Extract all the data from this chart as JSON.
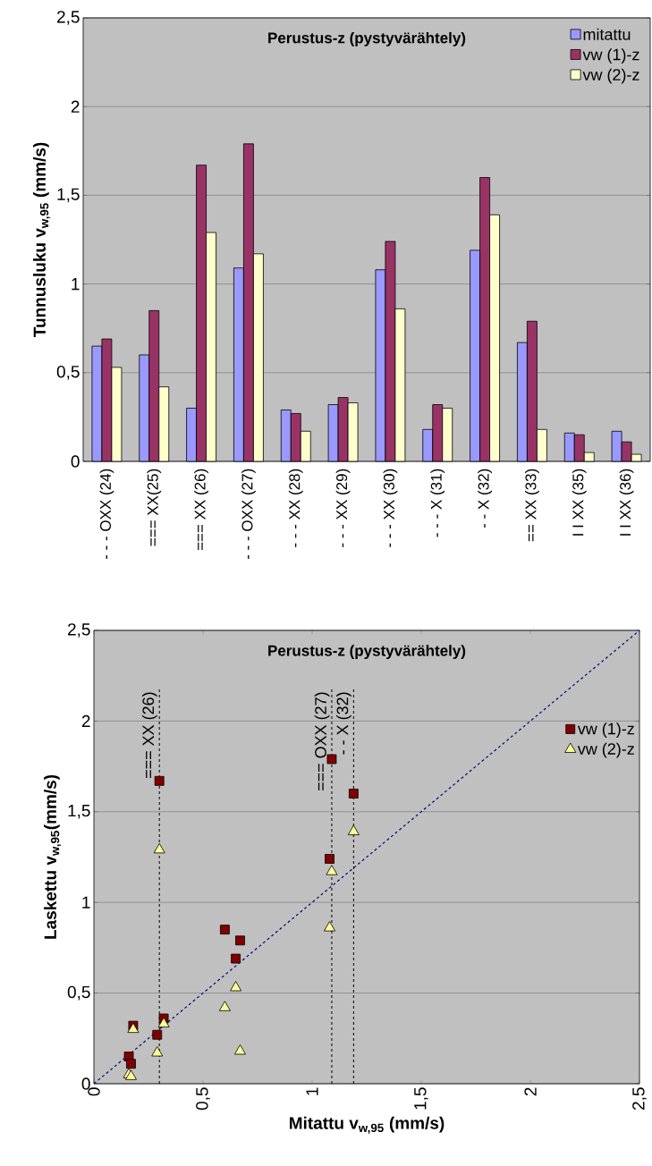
{
  "chart_data": [
    {
      "type": "bar",
      "title": "Perustus-z (pystyvärähtely)",
      "ylabel": "**Tunnusluku v$_{w,95}$ (mm/s)**",
      "categories": [
        "- - - OXX (24)",
        "=== XX(25)",
        "=== XX (26)",
        "- - - OXX (27)",
        "- - - XX (28)",
        "- - - XX (29)",
        "- - - XX (30)",
        "- - - X (31)",
        "- - X (32)",
        "== XX (33)",
        "I I XX (35)",
        "I I XX (36)"
      ],
      "series": [
        {
          "name": "mitattu",
          "color": "#9999ff",
          "values": [
            0.65,
            0.6,
            0.3,
            1.09,
            0.29,
            0.32,
            1.08,
            0.18,
            1.19,
            0.67,
            0.16,
            0.17
          ]
        },
        {
          "name": "vw (1)-z",
          "color": "#993366",
          "values": [
            0.69,
            0.85,
            1.67,
            1.79,
            0.27,
            0.36,
            1.24,
            0.32,
            1.6,
            0.79,
            0.15,
            0.11
          ]
        },
        {
          "name": "vw (2)-z",
          "color": "#ffffcc",
          "values": [
            0.53,
            0.42,
            1.29,
            1.17,
            0.17,
            0.33,
            0.86,
            0.3,
            1.39,
            0.18,
            0.05,
            0.04
          ]
        }
      ],
      "ylim": [
        0,
        2.5
      ],
      "yticks": [
        0,
        {
          "value": 0.5,
          "label": "0,5"
        },
        1,
        {
          "value": 1.5,
          "label": "1,5"
        },
        2,
        {
          "value": 2.5,
          "label": "2,5"
        }
      ],
      "grid": "y",
      "legend": "top right"
    },
    {
      "type": "scatter",
      "title": "Perustus-z (pystyvärähtely)",
      "xlabel": "**Mitattu  v$_{w,95}$ (mm/s)**",
      "ylabel": "**Laskettu  v$_{w,95}$(mm/s)**",
      "series": [
        {
          "name": "vw (1)-z",
          "color": "#800000",
          "marker": "square",
          "x": [
            0.65,
            0.6,
            0.3,
            1.09,
            0.29,
            0.32,
            1.08,
            0.18,
            1.19,
            0.67,
            0.16,
            0.17
          ],
          "values": [
            0.69,
            0.85,
            1.67,
            1.79,
            0.27,
            0.36,
            1.24,
            0.32,
            1.6,
            0.79,
            0.15,
            0.11
          ]
        },
        {
          "name": "vw (2)-z",
          "color": "#ffff99",
          "marker": "triangle",
          "x": [
            0.65,
            0.6,
            0.3,
            1.09,
            0.29,
            0.32,
            1.08,
            0.18,
            1.19,
            0.67,
            0.16,
            0.17
          ],
          "values": [
            0.53,
            0.42,
            1.29,
            1.17,
            0.17,
            0.33,
            0.86,
            0.3,
            1.39,
            0.18,
            0.05,
            0.04
          ]
        },
        {
          "type": "line",
          "color": "#000080",
          "line_style": "dashed",
          "marker": "none",
          "x": [
            0,
            2.5
          ],
          "values": [
            0,
            2.5
          ]
        }
      ],
      "ref_lines": [
        {
          "axis": "x",
          "value": 0.3,
          "label": "=== XX (26)",
          "color": "#000000",
          "line_style": "dashed"
        },
        {
          "axis": "x",
          "value": 1.09,
          "label": "=== OXX (27)",
          "color": "#000000",
          "line_style": "dashed"
        },
        {
          "axis": "x",
          "value": 1.19,
          "label": "- - X (32)",
          "color": "#000000",
          "line_style": "dashed"
        }
      ],
      "xlim": [
        0,
        2.5
      ],
      "xticks": [
        0,
        {
          "value": 0.5,
          "label": "0,5"
        },
        1,
        {
          "value": 1.5,
          "label": "1,5"
        },
        2,
        {
          "value": 2.5,
          "label": "2,5"
        }
      ],
      "ylim": [
        0,
        2.5
      ],
      "yticks": [
        0,
        {
          "value": 0.5,
          "label": "0,5"
        },
        1,
        {
          "value": 1.5,
          "label": "1,5"
        },
        2,
        {
          "value": 2.5,
          "label": "2,5"
        }
      ],
      "grid": "y",
      "legend": "right"
    }
  ]
}
